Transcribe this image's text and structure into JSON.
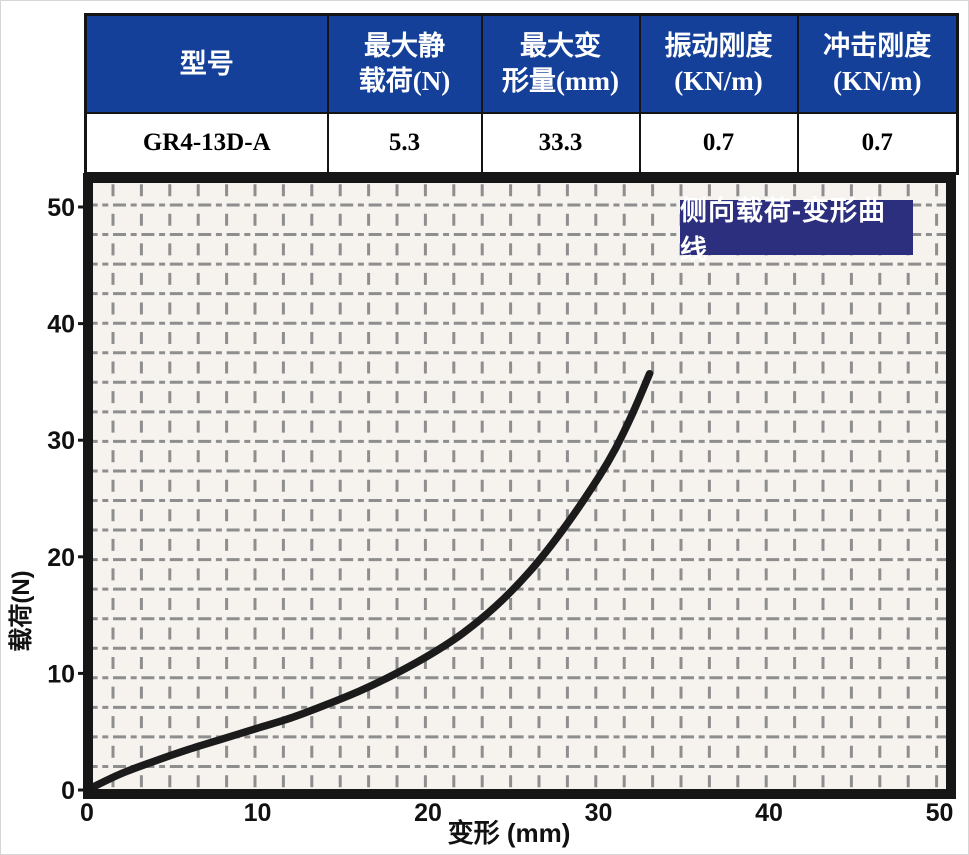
{
  "table": {
    "headers": [
      {
        "line1": "型号",
        "line2": ""
      },
      {
        "line1": "最大静",
        "line2": "载荷(N)"
      },
      {
        "line1": "最大变",
        "line2": "形量(mm)"
      },
      {
        "line1": "振动刚度",
        "line2": "(KN/m)"
      },
      {
        "line1": "冲击刚度",
        "line2": "(KN/m)"
      }
    ],
    "row": {
      "model": "GR4-13D-A",
      "max_static_load_n": "5.3",
      "max_deformation_mm": "33.3",
      "vibration_stiffness_kn_m": "0.7",
      "impact_stiffness_kn_m": "0.7"
    }
  },
  "chart_data": {
    "type": "line",
    "title": "侧向载荷-变形曲线",
    "xlabel": "变形 (mm)",
    "ylabel": "载荷(N)",
    "xlim": [
      0,
      50
    ],
    "ylim": [
      0,
      50
    ],
    "x_ticks": [
      0,
      10,
      20,
      30,
      40,
      50
    ],
    "y_ticks": [
      0,
      10,
      20,
      30,
      40,
      50
    ],
    "grid": true,
    "legend_position": "none",
    "series": [
      {
        "name": "侧向载荷-变形曲线",
        "points": [
          [
            0,
            0
          ],
          [
            2,
            1.4
          ],
          [
            4,
            2.5
          ],
          [
            6,
            3.5
          ],
          [
            8,
            4.4
          ],
          [
            10,
            5.3
          ],
          [
            12,
            6.2
          ],
          [
            14,
            7.3
          ],
          [
            16,
            8.5
          ],
          [
            18,
            9.9
          ],
          [
            20,
            11.5
          ],
          [
            22,
            13.4
          ],
          [
            24,
            15.8
          ],
          [
            26,
            18.8
          ],
          [
            28,
            22.5
          ],
          [
            30,
            26.8
          ],
          [
            31,
            29.3
          ],
          [
            32,
            32.3
          ],
          [
            33,
            35.7
          ]
        ]
      }
    ]
  },
  "colors": {
    "header_bg": "#15409a",
    "header_text": "#ffffff",
    "badge_bg": "#2b2f7d",
    "badge_text": "#ffffff",
    "curve": "#1b1b1b",
    "grid": "#8e8e8e",
    "plot_bg": "#f6f3ef",
    "axis": "#161616",
    "tick_text": "#111111"
  }
}
